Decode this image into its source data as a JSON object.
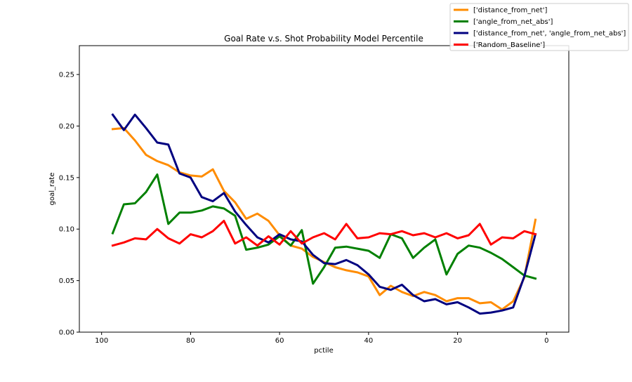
{
  "chart_data": {
    "type": "line",
    "title": "Goal Rate v.s. Shot Probability Model Percentile",
    "xlabel": "pctile",
    "ylabel": "goal_rate",
    "xlim": [
      105,
      -5
    ],
    "ylim": [
      0,
      0.278
    ],
    "x_reversed": true,
    "xticks": [
      100,
      80,
      60,
      40,
      20,
      0
    ],
    "xtick_labels": [
      "100",
      "80",
      "60",
      "40",
      "20",
      "0"
    ],
    "yticks": [
      0,
      0.05,
      0.1,
      0.15,
      0.2,
      0.25
    ],
    "ytick_labels": [
      "0.00",
      "0.05",
      "0.10",
      "0.15",
      "0.20",
      "0.25"
    ],
    "grid": false,
    "legend_position": "upper-right-outside",
    "x": [
      97.5,
      95,
      92.5,
      90,
      87.5,
      85,
      82.5,
      80,
      77.5,
      75,
      72.5,
      70,
      67.5,
      65,
      62.5,
      60,
      57.5,
      55,
      52.5,
      50,
      47.5,
      45,
      42.5,
      40,
      37.5,
      35,
      32.5,
      30,
      27.5,
      25,
      22.5,
      20,
      17.5,
      15,
      12.5,
      10,
      7.5,
      5,
      2.5
    ],
    "series": [
      {
        "name": "['distance_from_net']",
        "color": "#ff8c00",
        "values": [
          0.197,
          0.198,
          0.186,
          0.172,
          0.166,
          0.162,
          0.155,
          0.152,
          0.151,
          0.158,
          0.137,
          0.126,
          0.11,
          0.115,
          0.108,
          0.094,
          0.084,
          0.081,
          0.073,
          0.068,
          0.063,
          0.06,
          0.058,
          0.054,
          0.036,
          0.045,
          0.039,
          0.035,
          0.039,
          0.036,
          0.03,
          0.033,
          0.033,
          0.028,
          0.029,
          0.022,
          0.03,
          0.053,
          0.109
        ]
      },
      {
        "name": "['angle_from_net_abs']",
        "color": "#008000",
        "values": [
          0.096,
          0.124,
          0.125,
          0.136,
          0.153,
          0.105,
          0.116,
          0.116,
          0.118,
          0.122,
          0.12,
          0.113,
          0.08,
          0.082,
          0.085,
          0.093,
          0.084,
          0.099,
          0.047,
          0.063,
          0.082,
          0.083,
          0.081,
          0.079,
          0.072,
          0.095,
          0.091,
          0.072,
          0.082,
          0.09,
          0.056,
          0.076,
          0.084,
          0.082,
          0.077,
          0.071,
          0.063,
          0.055,
          0.052
        ]
      },
      {
        "name": "['distance_from_net', 'angle_from_net_abs']",
        "color": "#000080",
        "values": [
          0.211,
          0.196,
          0.211,
          0.198,
          0.184,
          0.182,
          0.154,
          0.15,
          0.131,
          0.127,
          0.135,
          0.117,
          0.104,
          0.092,
          0.087,
          0.095,
          0.09,
          0.088,
          0.075,
          0.067,
          0.066,
          0.07,
          0.065,
          0.056,
          0.044,
          0.041,
          0.046,
          0.036,
          0.03,
          0.032,
          0.027,
          0.029,
          0.024,
          0.018,
          0.019,
          0.021,
          0.024,
          0.054,
          0.095
        ]
      },
      {
        "name": "['Random_Baseline']",
        "color": "#ff0000",
        "values": [
          0.084,
          0.087,
          0.091,
          0.09,
          0.1,
          0.091,
          0.086,
          0.095,
          0.092,
          0.098,
          0.108,
          0.086,
          0.092,
          0.084,
          0.093,
          0.085,
          0.098,
          0.086,
          0.092,
          0.096,
          0.09,
          0.105,
          0.091,
          0.092,
          0.096,
          0.095,
          0.098,
          0.094,
          0.096,
          0.092,
          0.096,
          0.091,
          0.094,
          0.105,
          0.085,
          0.092,
          0.091,
          0.098,
          0.095
        ]
      }
    ]
  }
}
